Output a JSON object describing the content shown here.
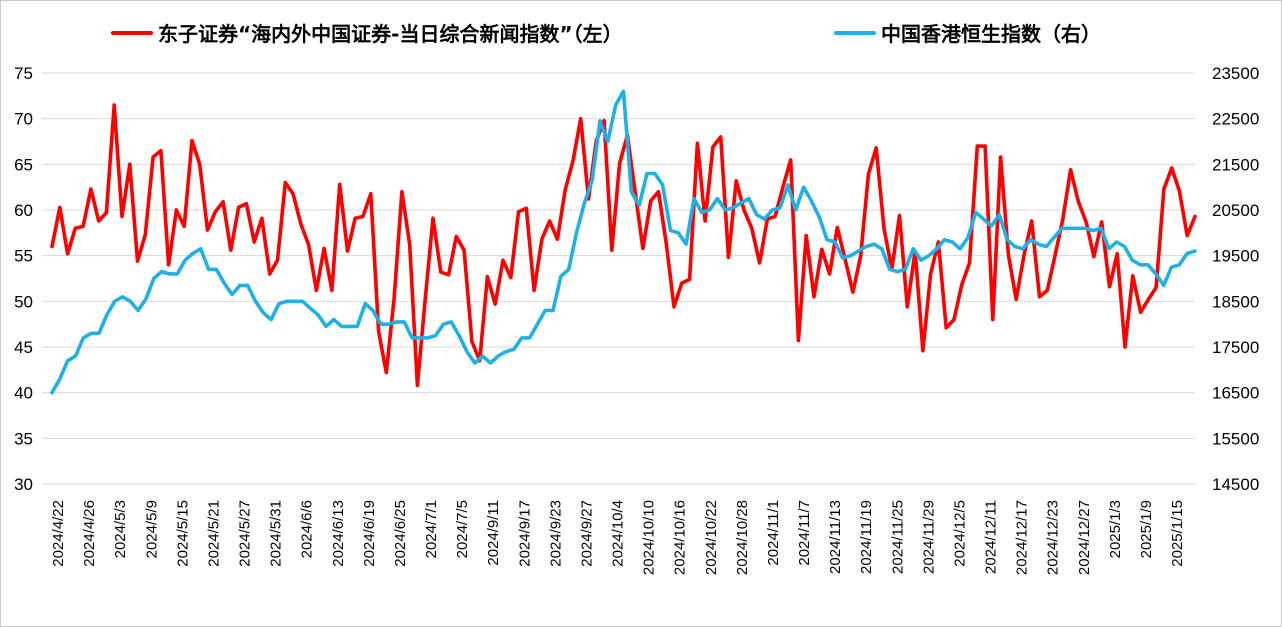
{
  "chart_data": {
    "type": "line",
    "legend": {
      "placement": "top",
      "entries": [
        {
          "label": "东子证券“海内外中国证券-当日综合新闻指数”（左）",
          "color": "#ff0000"
        },
        {
          "label": "中国香港恒生指数（右）",
          "color": "#1fb0e6"
        }
      ]
    },
    "y_left": {
      "min": 30,
      "max": 75,
      "ticks": [
        "30",
        "35",
        "40",
        "45",
        "50",
        "55",
        "60",
        "65",
        "70",
        "75"
      ]
    },
    "y_right": {
      "min": 14500,
      "max": 23500,
      "ticks": [
        "14500",
        "15500",
        "16500",
        "17500",
        "18500",
        "19500",
        "20500",
        "21500",
        "22500",
        "23500"
      ]
    },
    "x_tick_labels": [
      "2024/4/22",
      "2024/4/26",
      "2024/5/3",
      "2024/5/9",
      "2024/5/15",
      "2024/5/21",
      "2024/5/27",
      "2024/5/31",
      "2024/6/6",
      "2024/6/13",
      "2024/6/19",
      "2024/6/25",
      "2024/7/1",
      "2024/7/5",
      "2024/9/11",
      "2024/9/17",
      "2024/9/23",
      "2024/9/27",
      "2024/10/4",
      "2024/10/10",
      "2024/10/16",
      "2024/10/22",
      "2024/10/28",
      "2024/11/1",
      "2024/11/7",
      "2024/11/13",
      "2024/11/19",
      "2024/11/25",
      "2024/11/29",
      "2024/12/5",
      "2024/12/11",
      "2024/12/17",
      "2024/12/23",
      "2024/12/27",
      "2025/1/3",
      "2025/1/9",
      "2025/1/15"
    ],
    "gridlines": "horizontal",
    "series": [
      {
        "name": "东子证券“海内外中国证券-当日综合新闻指数”（左）",
        "color": "#ff0000",
        "axis": "left",
        "values": [
          56,
          60.3,
          55.2,
          58,
          58.2,
          62.3,
          58.8,
          59.7,
          71.5,
          59.3,
          65,
          54.4,
          57.3,
          65.8,
          66.5,
          54,
          60,
          58.2,
          67.6,
          65,
          57.8,
          59.8,
          60.9,
          55.6,
          60.3,
          60.7,
          56.5,
          59.1,
          53,
          54.5,
          63,
          61.8,
          58.5,
          56.2,
          51.2,
          55.8,
          51.2,
          62.8,
          55.5,
          59.1,
          59.3,
          61.8,
          46.7,
          42.2,
          50.3,
          62,
          56.2,
          40.8,
          50.2,
          59.1,
          53.2,
          52.9,
          57.1,
          55.6,
          45.6,
          43.5,
          52.7,
          49.7,
          54.5,
          52.6,
          59.8,
          60.2,
          51.2,
          56.8,
          58.8,
          56.8,
          62.2,
          65.4,
          70,
          61.2,
          67.6,
          69.8,
          55.6,
          65.1,
          68.2,
          61.9,
          55.8,
          61,
          62,
          56.3,
          49.4,
          52,
          52.4,
          67.3,
          58.8,
          66.9,
          68,
          54.8,
          63.2,
          60,
          58,
          54.2,
          59,
          59.3,
          62.5,
          65.5,
          45.7,
          57.2,
          50.5,
          55.7,
          53,
          58.1,
          54.6,
          51,
          55,
          63.9,
          66.8,
          58,
          53.5,
          59.4,
          49.4,
          55.5,
          44.6,
          53,
          56.5,
          47.1,
          48,
          51.8,
          54.2,
          67,
          67,
          48,
          65.8,
          55.1,
          50.2,
          55,
          58.8,
          50.5,
          51.2,
          55,
          59,
          64.4,
          60.9,
          58.7,
          54.9,
          58.7,
          51.6,
          55.2,
          45,
          52.8,
          48.8,
          50.2,
          51.5,
          62.3,
          64.6,
          62.1,
          57.2,
          59.3
        ]
      },
      {
        "name": "中国香港恒生指数（右）",
        "color": "#1fb0e6",
        "axis": "right",
        "values": [
          16500,
          16800,
          17200,
          17300,
          17700,
          17800,
          17800,
          18200,
          18500,
          18600,
          18500,
          18300,
          18550,
          19000,
          19150,
          19100,
          19100,
          19400,
          19550,
          19650,
          19200,
          19200,
          18900,
          18650,
          18850,
          18850,
          18500,
          18250,
          18100,
          18450,
          18500,
          18500,
          18500,
          18350,
          18200,
          17950,
          18100,
          17950,
          17950,
          17950,
          18450,
          18300,
          18000,
          18000,
          18050,
          18050,
          17700,
          17700,
          17700,
          17750,
          18000,
          18050,
          17750,
          17400,
          17150,
          17300,
          17150,
          17300,
          17400,
          17450,
          17700,
          17700,
          18000,
          18300,
          18300,
          19050,
          19200,
          20000,
          20650,
          21150,
          22450,
          22000,
          22800,
          23100,
          20900,
          20600,
          21300,
          21300,
          21050,
          20050,
          20000,
          19750,
          20750,
          20450,
          20500,
          20750,
          20500,
          20550,
          20650,
          20750,
          20400,
          20300,
          20500,
          20550,
          21050,
          20500,
          21000,
          20700,
          20350,
          19850,
          19800,
          19450,
          19500,
          19600,
          19700,
          19750,
          19650,
          19200,
          19150,
          19200,
          19650,
          19400,
          19500,
          19650,
          19850,
          19800,
          19650,
          19900,
          20450,
          20300,
          20150,
          20400,
          19850,
          19700,
          19650,
          19850,
          19750,
          19700,
          19900,
          20100,
          20100,
          20100,
          20100,
          20050,
          20100,
          19650,
          19800,
          19700,
          19400,
          19300,
          19300,
          19100,
          18850,
          19250,
          19300,
          19550,
          19600
        ]
      }
    ]
  }
}
